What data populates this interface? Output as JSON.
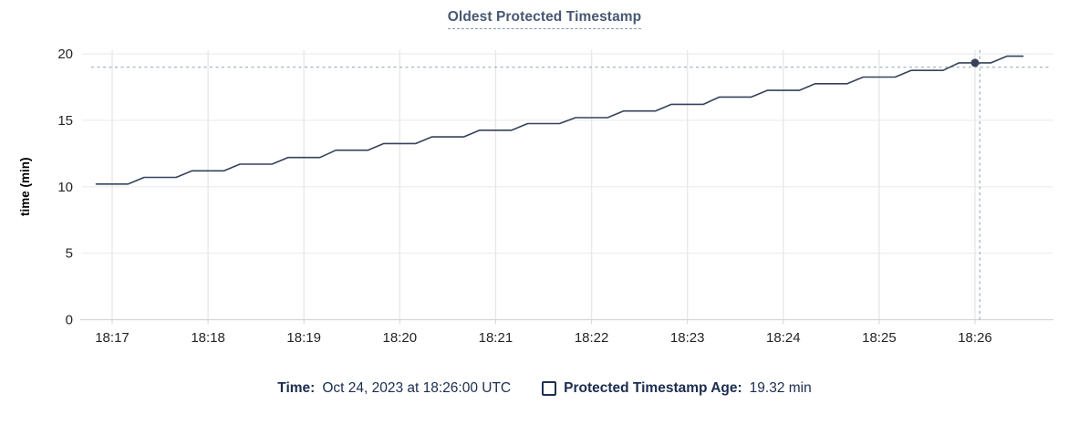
{
  "title": "Oldest Protected Timestamp",
  "footer_legend": {
    "time_label": "Time:",
    "time_value": "Oct 24, 2023 at 18:26:00 UTC",
    "series_swatch": "square-outline-icon",
    "series_label": "Protected Timestamp Age:",
    "series_value": "19.32 min"
  },
  "colors": {
    "title_text": "#475872",
    "legend_text": "#1b2d4e",
    "line": "#36425a",
    "point": "#36425a",
    "crosshair": "#a3b5c4",
    "grid_vertical": "#e8e8e8",
    "grid_horizontal": "#efefef",
    "axis": "#d6d6d6",
    "tick_text": "#242424",
    "ylabel_text": "#000000"
  },
  "chart_data": {
    "type": "line",
    "title": "Oldest Protected Timestamp",
    "xlabel": "",
    "ylabel": "time (min)",
    "ylim": [
      0,
      20
    ],
    "yticks": [
      0,
      5,
      10,
      15,
      20
    ],
    "x_tick_labels": [
      "18:17",
      "18:18",
      "18:19",
      "18:20",
      "18:21",
      "18:22",
      "18:23",
      "18:24",
      "18:25",
      "18:26"
    ],
    "x_tick_t_sec": [
      0,
      60,
      120,
      180,
      240,
      300,
      360,
      420,
      480,
      540
    ],
    "grid": true,
    "legend_position": "bottom",
    "series": [
      {
        "name": "Protected Timestamp Age",
        "unit": "min",
        "points": [
          [
            -10,
            10.2
          ],
          [
            10,
            10.2
          ],
          [
            20,
            10.7
          ],
          [
            40,
            10.7
          ],
          [
            50,
            11.2
          ],
          [
            70,
            11.2
          ],
          [
            80,
            11.7
          ],
          [
            100,
            11.7
          ],
          [
            110,
            12.2
          ],
          [
            130,
            12.2
          ],
          [
            140,
            12.75
          ],
          [
            160,
            12.75
          ],
          [
            170,
            13.25
          ],
          [
            190,
            13.25
          ],
          [
            200,
            13.75
          ],
          [
            220,
            13.75
          ],
          [
            230,
            14.25
          ],
          [
            250,
            14.25
          ],
          [
            260,
            14.75
          ],
          [
            280,
            14.75
          ],
          [
            290,
            15.2
          ],
          [
            310,
            15.2
          ],
          [
            320,
            15.7
          ],
          [
            340,
            15.7
          ],
          [
            350,
            16.2
          ],
          [
            370,
            16.2
          ],
          [
            380,
            16.75
          ],
          [
            400,
            16.75
          ],
          [
            410,
            17.25
          ],
          [
            430,
            17.25
          ],
          [
            440,
            17.75
          ],
          [
            460,
            17.75
          ],
          [
            470,
            18.25
          ],
          [
            490,
            18.25
          ],
          [
            500,
            18.75
          ],
          [
            520,
            18.75
          ],
          [
            530,
            19.32
          ],
          [
            550,
            19.32
          ],
          [
            560,
            19.82
          ],
          [
            570,
            19.82
          ]
        ]
      }
    ],
    "hover": {
      "date_time": "Oct 24, 2023 at 18:26:00 UTC",
      "point_x_label": "18:26:00",
      "point_t_sec": 540,
      "point_value": 19.32,
      "cursor_t_sec": 543,
      "cursor_value": 19.0
    }
  }
}
